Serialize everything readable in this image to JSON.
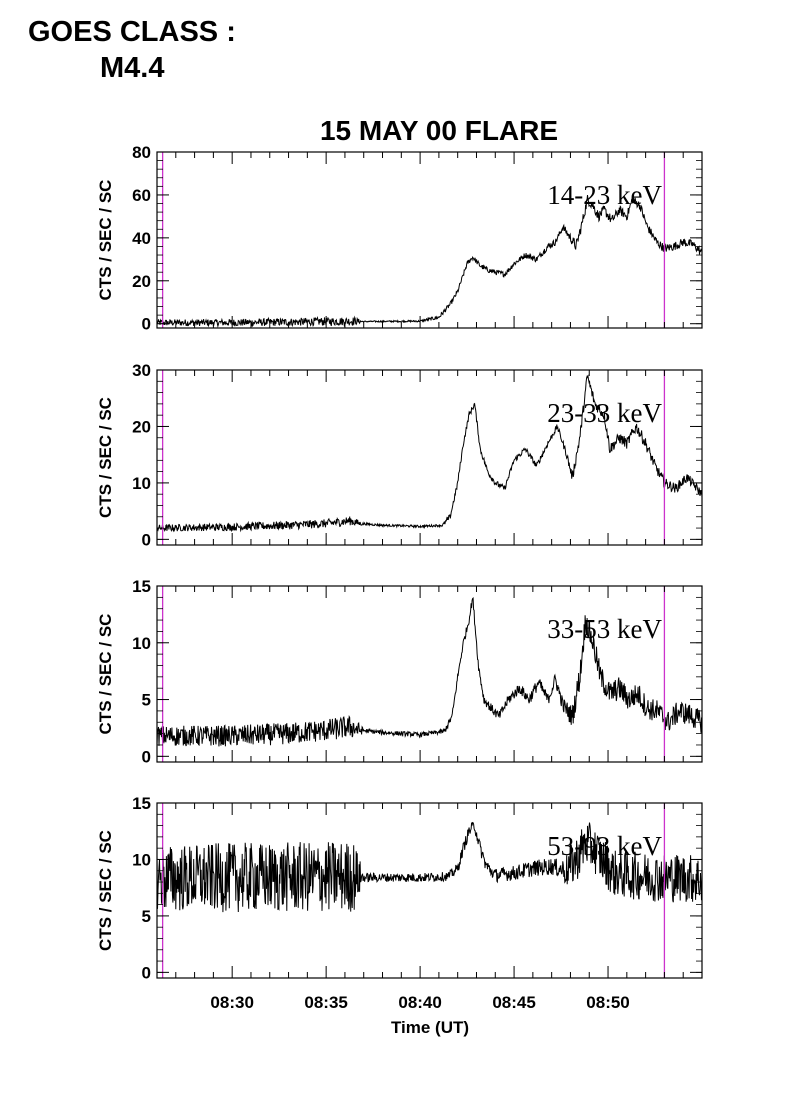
{
  "header": {
    "line1": "GOES CLASS :",
    "line2": "M4.4"
  },
  "chart_data": {
    "type": "line",
    "title": "15 MAY 00 FLARE",
    "xlabel": "Time (UT)",
    "x_range_minutes": [
      26.0,
      55.0
    ],
    "x_ticks": [
      {
        "minute": 30,
        "label": "08:30"
      },
      {
        "minute": 35,
        "label": "08:35"
      },
      {
        "minute": 40,
        "label": "08:40"
      },
      {
        "minute": 45,
        "label": "08:45"
      },
      {
        "minute": 50,
        "label": "08:50"
      }
    ],
    "vertical_markers_minutes": [
      26.3,
      53.0
    ],
    "marker_color": "#cc33cc",
    "line_color": "#000000",
    "panels": [
      {
        "band_label": "14-23 keV",
        "ylabel": "CTS / SEC / SC",
        "ylim": [
          -2,
          80
        ],
        "yticks": [
          0,
          20,
          40,
          60,
          80
        ],
        "baseline": [
          [
            26.0,
            0.5
          ],
          [
            30.0,
            0.5
          ],
          [
            33.0,
            0.8
          ],
          [
            36.5,
            1.2
          ],
          [
            37.0,
            1.0
          ],
          [
            40.0,
            1.2
          ],
          [
            41.0,
            3
          ],
          [
            41.6,
            9
          ],
          [
            42.0,
            15
          ],
          [
            42.5,
            28
          ],
          [
            42.8,
            31
          ],
          [
            43.2,
            27
          ],
          [
            43.6,
            25
          ],
          [
            44.0,
            24
          ],
          [
            44.5,
            23
          ],
          [
            45.0,
            28
          ],
          [
            45.6,
            32
          ],
          [
            46.2,
            30
          ],
          [
            46.8,
            36
          ],
          [
            47.2,
            38
          ],
          [
            47.6,
            45
          ],
          [
            48.0,
            40
          ],
          [
            48.3,
            36
          ],
          [
            48.6,
            46
          ],
          [
            48.9,
            58
          ],
          [
            49.2,
            55
          ],
          [
            49.5,
            50
          ],
          [
            49.8,
            53
          ],
          [
            50.2,
            48
          ],
          [
            50.6,
            53
          ],
          [
            51.0,
            50
          ],
          [
            51.3,
            58
          ],
          [
            51.7,
            55
          ],
          [
            52.1,
            45
          ],
          [
            52.6,
            38
          ],
          [
            53.0,
            35
          ],
          [
            53.5,
            36
          ],
          [
            54.0,
            38
          ],
          [
            54.5,
            37
          ],
          [
            55.0,
            33
          ]
        ],
        "noise": [
          [
            26.0,
            1.5
          ],
          [
            36.5,
            2.0
          ],
          [
            37.0,
            0.3
          ],
          [
            40.0,
            0.4
          ],
          [
            41.0,
            1.0
          ],
          [
            47.5,
            1.5
          ],
          [
            48.3,
            2.5
          ],
          [
            52.0,
            2.0
          ],
          [
            55.0,
            2.0
          ]
        ]
      },
      {
        "band_label": "23-33 keV",
        "ylabel": "CTS / SEC / SC",
        "ylim": [
          -1,
          30
        ],
        "yticks": [
          0,
          10,
          20,
          30
        ],
        "baseline": [
          [
            26.0,
            2.0
          ],
          [
            30.0,
            2.2
          ],
          [
            33.0,
            2.5
          ],
          [
            35.0,
            2.8
          ],
          [
            36.3,
            3.3
          ],
          [
            36.8,
            2.8
          ],
          [
            38.0,
            2.5
          ],
          [
            40.0,
            2.3
          ],
          [
            41.2,
            2.5
          ],
          [
            41.6,
            4
          ],
          [
            42.0,
            10
          ],
          [
            42.3,
            17
          ],
          [
            42.6,
            22
          ],
          [
            42.9,
            24
          ],
          [
            43.2,
            16
          ],
          [
            43.6,
            12
          ],
          [
            44.0,
            10
          ],
          [
            44.5,
            9
          ],
          [
            45.0,
            14
          ],
          [
            45.6,
            16
          ],
          [
            46.2,
            13
          ],
          [
            46.8,
            17
          ],
          [
            47.3,
            20
          ],
          [
            47.8,
            15
          ],
          [
            48.1,
            11
          ],
          [
            48.5,
            18
          ],
          [
            48.9,
            29
          ],
          [
            49.3,
            24
          ],
          [
            49.8,
            22
          ],
          [
            50.1,
            16
          ],
          [
            50.6,
            18
          ],
          [
            51.0,
            17
          ],
          [
            51.5,
            20
          ],
          [
            52.0,
            17
          ],
          [
            52.5,
            13
          ],
          [
            53.0,
            10
          ],
          [
            53.6,
            9
          ],
          [
            54.2,
            11
          ],
          [
            55.0,
            8
          ]
        ],
        "noise": [
          [
            26.0,
            0.6
          ],
          [
            36.5,
            0.8
          ],
          [
            37.0,
            0.2
          ],
          [
            41.0,
            0.2
          ],
          [
            41.5,
            0.5
          ],
          [
            47.5,
            0.5
          ],
          [
            48.3,
            1.0
          ],
          [
            52.0,
            1.0
          ],
          [
            55.0,
            0.8
          ]
        ]
      },
      {
        "band_label": "33-53 keV",
        "ylabel": "CTS / SEC / SC",
        "ylim": [
          -0.5,
          15
        ],
        "yticks": [
          0,
          5,
          10,
          15
        ],
        "baseline": [
          [
            26.0,
            1.8
          ],
          [
            30.0,
            1.8
          ],
          [
            33.0,
            2.0
          ],
          [
            35.0,
            2.3
          ],
          [
            36.3,
            2.6
          ],
          [
            36.8,
            2.3
          ],
          [
            38.0,
            2.1
          ],
          [
            40.0,
            1.9
          ],
          [
            41.3,
            2.2
          ],
          [
            41.7,
            3.5
          ],
          [
            42.0,
            7
          ],
          [
            42.3,
            10
          ],
          [
            42.6,
            12
          ],
          [
            42.8,
            14
          ],
          [
            43.1,
            8
          ],
          [
            43.4,
            5
          ],
          [
            43.8,
            4.2
          ],
          [
            44.2,
            3.5
          ],
          [
            44.7,
            5
          ],
          [
            45.3,
            6
          ],
          [
            45.8,
            5
          ],
          [
            46.3,
            6.5
          ],
          [
            46.8,
            5
          ],
          [
            47.2,
            6.8
          ],
          [
            47.6,
            4.5
          ],
          [
            48.1,
            3.5
          ],
          [
            48.5,
            7
          ],
          [
            48.8,
            12
          ],
          [
            49.2,
            10
          ],
          [
            49.6,
            7
          ],
          [
            50.1,
            5.5
          ],
          [
            50.6,
            6
          ],
          [
            51.1,
            5
          ],
          [
            51.6,
            5.5
          ],
          [
            52.1,
            4.2
          ],
          [
            52.6,
            4
          ],
          [
            53.2,
            3
          ],
          [
            53.8,
            4
          ],
          [
            54.4,
            3.6
          ],
          [
            55.0,
            3
          ]
        ],
        "noise": [
          [
            26.0,
            0.9
          ],
          [
            36.5,
            1.0
          ],
          [
            37.0,
            0.2
          ],
          [
            41.0,
            0.2
          ],
          [
            41.5,
            0.3
          ],
          [
            47.5,
            0.6
          ],
          [
            48.3,
            1.1
          ],
          [
            52.0,
            1.0
          ],
          [
            55.0,
            1.0
          ]
        ]
      },
      {
        "band_label": "53-93 keV",
        "ylabel": "CTS / SEC / SC",
        "ylim": [
          -0.5,
          15
        ],
        "yticks": [
          0,
          5,
          10,
          15
        ],
        "baseline": [
          [
            26.0,
            8.3
          ],
          [
            30.0,
            8.4
          ],
          [
            33.0,
            8.4
          ],
          [
            36.5,
            8.5
          ],
          [
            37.0,
            8.4
          ],
          [
            40.0,
            8.4
          ],
          [
            41.5,
            8.5
          ],
          [
            42.0,
            9.2
          ],
          [
            42.3,
            11
          ],
          [
            42.6,
            12.5
          ],
          [
            42.9,
            13
          ],
          [
            43.2,
            11
          ],
          [
            43.5,
            9.5
          ],
          [
            44.0,
            8.6
          ],
          [
            45.0,
            8.8
          ],
          [
            46.0,
            9.2
          ],
          [
            47.0,
            9.4
          ],
          [
            47.8,
            9.0
          ],
          [
            48.3,
            10
          ],
          [
            48.8,
            11.5
          ],
          [
            49.2,
            11
          ],
          [
            49.7,
            10
          ],
          [
            50.3,
            8.8
          ],
          [
            51.0,
            8.6
          ],
          [
            52.0,
            8.5
          ],
          [
            53.0,
            8.4
          ],
          [
            54.0,
            8.4
          ],
          [
            55.0,
            8.2
          ]
        ],
        "noise": [
          [
            26.0,
            3.0
          ],
          [
            36.5,
            3.2
          ],
          [
            37.0,
            0.4
          ],
          [
            41.5,
            0.4
          ],
          [
            42.0,
            0.5
          ],
          [
            47.5,
            0.8
          ],
          [
            48.0,
            2.0
          ],
          [
            53.0,
            2.2
          ],
          [
            55.0,
            2.2
          ]
        ]
      }
    ]
  }
}
